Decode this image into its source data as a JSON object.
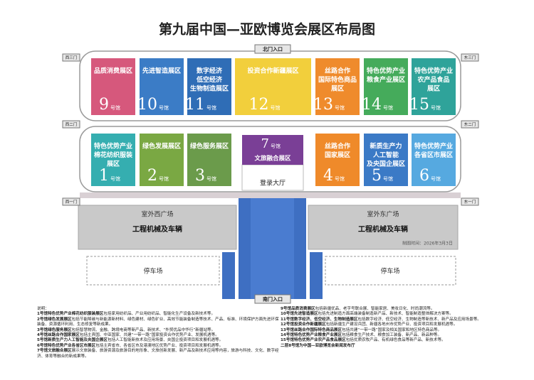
{
  "title": "第九届中国—亚欧博览会展区布局图",
  "hall_unit": "号馆",
  "gates": {
    "north": "北门入口",
    "south": "南门入口",
    "west": [
      "西三门",
      "西二门",
      "西一门"
    ],
    "east": [
      "东三门",
      "东二门",
      "东一门"
    ]
  },
  "top_halls": [
    {
      "number": "9",
      "name_lines": [
        "品质消费展区"
      ],
      "color": "#d6587c"
    },
    {
      "number": "10",
      "name_lines": [
        "先进智造展区"
      ],
      "color": "#3b7cc6"
    },
    {
      "number": "11",
      "name_lines": [
        "数字经济",
        "低空经济",
        "生物制造展区"
      ],
      "color": "#2f6db6"
    },
    {
      "number": "12",
      "name_lines": [
        "投资合作新疆展区"
      ],
      "color": "#f2cf3c"
    },
    {
      "number": "13",
      "name_lines": [
        "丝路合作",
        "国际特色商品",
        "展区"
      ],
      "color": "#ef8b2c"
    },
    {
      "number": "14",
      "name_lines": [
        "特色优势产业",
        "粮食产业展区"
      ],
      "color": "#45ab5b"
    },
    {
      "number": "15",
      "name_lines": [
        "特色优势产业",
        "农产品食品",
        "展区"
      ],
      "color": "#2fa39a"
    }
  ],
  "bottom_halls": [
    {
      "number": "1",
      "name_lines": [
        "特色优势产业",
        "棉花纺织服装",
        "展区"
      ],
      "color": "#35aeb0"
    },
    {
      "number": "2",
      "name_lines": [
        "绿色发展展区"
      ],
      "color": "#7aa843"
    },
    {
      "number": "3",
      "name_lines": [
        "绿色服务展区"
      ],
      "color": "#6b9b4b"
    },
    {
      "number": "4",
      "name_lines": [
        "丝路合作",
        "国家展区"
      ],
      "color": "#ef8a2a"
    },
    {
      "number": "5",
      "name_lines": [
        "新质生产力",
        "人工智能",
        "及央国企展区"
      ],
      "color": "#3b7ac6"
    },
    {
      "number": "6",
      "name_lines": [
        "特色优势产业",
        "各省区市展区"
      ],
      "color": "#56a9e0"
    }
  ],
  "hall7": {
    "number": "7",
    "name": "文旅融合展区",
    "color": "#7a3f96"
  },
  "lobby": "登录大厅",
  "plazas": [
    {
      "name": "室外西广场",
      "use": "工程机械及车辆"
    },
    {
      "name": "室外东广场",
      "use": "工程机械及车辆"
    }
  ],
  "parking": [
    "停车场",
    "停车场"
  ],
  "date": "制图时间：2026年3月3日",
  "notes": {
    "label": "说明：",
    "left": [
      {
        "title": "1号馆特色优势产业棉花纺织服装展区",
        "text": "包括家用纺织品、产业用纺织品、智能化生产设备及新技术等。"
      },
      {
        "title": "2号馆绿色发展展区",
        "text": "包括节能降碳与新能源新材料、绿色建材、绿色矿业、高效节能装备制造等技术、产品、标准、环境保护方面先进环保装备、资源循环利用、生态修复等新成果。"
      },
      {
        "title": "3号馆绿色服务展区",
        "text": "包括智慧物流、金融、跨境电商等新产品、新技术、“外贸优品中华行”新疆站等。"
      },
      {
        "title": "4号馆丝路合作国家展区",
        "text": "包括主宾国、中亚国家、共建“一带一路”国家投资合作优势产业、发展机遇等。"
      },
      {
        "title": "5号馆新质生产力人工智能及央国企展区",
        "text": "包括人工智能新技术及应用场景、央国企投资项目和发展机遇等。"
      },
      {
        "title": "6号馆特色优势产业各省区市展区",
        "text": "包括主宾省市、各省区市及港澳地区优势产业、投资项目和发展机遇等。"
      },
      {
        "title": "7号馆文旅融合展区",
        "text": "展示文旅装备、旅游资源及旅游目的地形象、文旅创新发展、新产品及新技术应用等内容，旅游与科技、文化、数字经济、体育等融合的新成果等。"
      }
    ],
    "right": [
      {
        "title": "9号馆品质消费展区",
        "text": "包括新疆优品、老字号联合展、智能家居、美妆日化、时尚潮流等。"
      },
      {
        "title": "10号馆先进智造展区",
        "text": "包括先进制造方面高端装备制造新产品、新技术、智能制造整体解决方案等。"
      },
      {
        "title": "11号馆数字经济、低空经济、生物制造展区",
        "text": "包括数字经济、低空经济、生物制造等新技术、新产品及应用场景等。"
      },
      {
        "title": "12号馆投资合作新疆展区",
        "text": "包括新疆生产建设兵团、新疆各地州市优势产业、投资项目和发展机遇等。"
      },
      {
        "title": "13号馆丝路合作国际特色商品展区",
        "text": "包括共建“一带一路”国家及相关国家和地区特色商品等。"
      },
      {
        "title": "14号馆特色优势产业粮食产业展区",
        "text": "包括粮食生产技术、粮食加工装备、新产品、新品种等。"
      },
      {
        "title": "15号馆特色优势产业农产品食品展区",
        "text": "包括优质农牧产品、有机绿色食品等新产品、新技术等。"
      }
    ],
    "footer": "二层8号馆为中国—亚欧博览会新闻发布厅"
  }
}
